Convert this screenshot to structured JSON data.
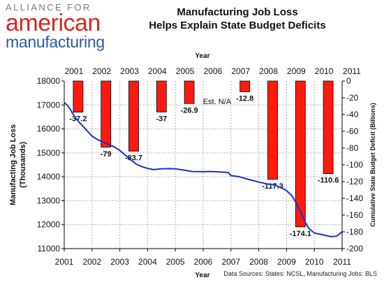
{
  "logo": {
    "line1": "ALLIANCE FOR",
    "line2": "american",
    "line3": "manufacturing"
  },
  "header": {
    "title_line1": "Manufacturing Job Loss",
    "title_line2": "Helps Explain State Budget Deficits"
  },
  "source_note": "Data Sources: States: NCSL, Manufacturing Jobs: BLS",
  "colors": {
    "bar": "#ff1a0f",
    "line": "#1f2fc8",
    "grid": "#b0b0b0"
  },
  "chart_data": {
    "type": "bar+line",
    "top_axis": {
      "label": "Year",
      "ticks": [
        "2001",
        "2002",
        "2003",
        "2004",
        "2005",
        "2006",
        "2007",
        "2008",
        "2009",
        "2010",
        "2011"
      ]
    },
    "bottom_axis": {
      "label": "Year",
      "ticks": [
        "2001",
        "2002",
        "2003",
        "2004",
        "2005",
        "2006",
        "2007",
        "2008",
        "2009",
        "2010",
        "2011"
      ],
      "range": [
        2001,
        2011
      ]
    },
    "left_axis": {
      "label_line1": "Manufacting Job Loss",
      "label_line2": "(Thousands)",
      "range": [
        11000,
        18000
      ],
      "ticks": [
        "18000",
        "17000",
        "16000",
        "15000",
        "14000",
        "13000",
        "12000",
        "11000"
      ]
    },
    "right_axis": {
      "label": "Cumulative State Budget Deficit (Billions)",
      "range": [
        -200,
        0
      ],
      "ticks": [
        "0",
        "-20",
        "-40",
        "-60",
        "-80",
        "-100",
        "-120",
        "-140",
        "-160",
        "-180",
        "-200"
      ]
    },
    "bars": [
      {
        "year": "2002",
        "value": -37.2,
        "label": "-37.2"
      },
      {
        "year": "2003",
        "value": -79,
        "label": "-79"
      },
      {
        "year": "2004",
        "value": -83.7,
        "label": "-83.7"
      },
      {
        "year": "2005",
        "value": -37,
        "label": "-37"
      },
      {
        "year": "2006",
        "value": -26.9,
        "label": "-26.9"
      },
      {
        "year": "2007",
        "value": null,
        "label": "Est. N/A"
      },
      {
        "year": "2008",
        "value": -12.8,
        "label": "-12.8"
      },
      {
        "year": "2009",
        "value": -117.3,
        "label": "-117.3"
      },
      {
        "year": "2010",
        "value": -174.1,
        "label": "-174.1"
      },
      {
        "year": "2011",
        "value": -110.6,
        "label": "-110.6"
      }
    ],
    "line": {
      "x": [
        2001.0,
        2001.1,
        2001.2,
        2001.3,
        2001.45,
        2001.6,
        2001.8,
        2002.0,
        2002.2,
        2002.5,
        2002.8,
        2003.0,
        2003.2,
        2003.4,
        2003.6,
        2003.8,
        2004.0,
        2004.2,
        2004.5,
        2004.8,
        2005.0,
        2005.3,
        2005.6,
        2006.0,
        2006.3,
        2006.6,
        2006.9,
        2007.0,
        2007.3,
        2007.6,
        2008.0,
        2008.3,
        2008.6,
        2008.8,
        2009.0,
        2009.2,
        2009.35,
        2009.5,
        2009.65,
        2009.8,
        2010.0,
        2010.2,
        2010.4,
        2010.6,
        2010.8,
        2011.0
      ],
      "y": [
        17100,
        17000,
        16850,
        16650,
        16400,
        16200,
        15950,
        15700,
        15550,
        15400,
        15250,
        15100,
        14900,
        14700,
        14520,
        14420,
        14350,
        14300,
        14330,
        14340,
        14330,
        14280,
        14220,
        14210,
        14220,
        14200,
        14180,
        14050,
        14000,
        13900,
        13780,
        13700,
        13650,
        13550,
        13420,
        13200,
        12900,
        12550,
        12150,
        11850,
        11650,
        11600,
        11550,
        11500,
        11520,
        11700
      ]
    }
  }
}
